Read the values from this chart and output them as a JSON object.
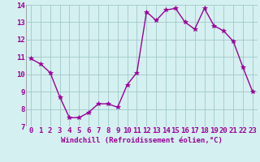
{
  "x": [
    0,
    1,
    2,
    3,
    4,
    5,
    6,
    7,
    8,
    9,
    10,
    11,
    12,
    13,
    14,
    15,
    16,
    17,
    18,
    19,
    20,
    21,
    22,
    23
  ],
  "y": [
    10.9,
    10.6,
    10.1,
    8.7,
    7.5,
    7.5,
    7.8,
    8.3,
    8.3,
    8.1,
    9.4,
    10.1,
    13.6,
    13.1,
    13.7,
    13.8,
    13.0,
    12.6,
    13.8,
    12.8,
    12.5,
    11.9,
    10.4,
    9.0
  ],
  "line_color": "#990099",
  "marker": "*",
  "marker_size": 4,
  "bg_color": "#d5f0f0",
  "grid_color": "#a0c8c8",
  "xlabel": "Windchill (Refroidissement éolien,°C)",
  "ylim": [
    7,
    14
  ],
  "xlim_min": -0.5,
  "xlim_max": 23.5,
  "yticks": [
    7,
    8,
    9,
    10,
    11,
    12,
    13,
    14
  ],
  "xticks": [
    0,
    1,
    2,
    3,
    4,
    5,
    6,
    7,
    8,
    9,
    10,
    11,
    12,
    13,
    14,
    15,
    16,
    17,
    18,
    19,
    20,
    21,
    22,
    23
  ],
  "xlabel_fontsize": 6.5,
  "tick_fontsize": 6.5,
  "label_color": "#990099",
  "line_width": 1.0
}
